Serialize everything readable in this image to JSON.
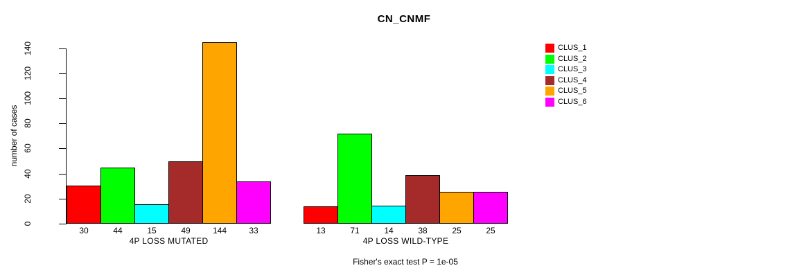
{
  "title": "CN_CNMF",
  "chart_data": {
    "type": "bar",
    "title": "CN_CNMF",
    "ylabel": "number of cases",
    "xlabel": "",
    "ylim": [
      0,
      140
    ],
    "yticks": [
      0,
      20,
      40,
      60,
      80,
      100,
      120,
      140
    ],
    "grid": false,
    "legend_position": "right",
    "series": [
      {
        "name": "CLUS_1",
        "color": "#FF0000"
      },
      {
        "name": "CLUS_2",
        "color": "#00FF00"
      },
      {
        "name": "CLUS_3",
        "color": "#00FFFF"
      },
      {
        "name": "CLUS_4",
        "color": "#A52A2A"
      },
      {
        "name": "CLUS_5",
        "color": "#FFA500"
      },
      {
        "name": "CLUS_6",
        "color": "#FF00FF"
      }
    ],
    "groups": [
      {
        "label": "4P LOSS MUTATED",
        "values": [
          30,
          44,
          15,
          49,
          144,
          33
        ]
      },
      {
        "label": "4P LOSS WILD-TYPE",
        "values": [
          13,
          71,
          14,
          38,
          25,
          25
        ]
      }
    ],
    "footnote": "Fisher's exact test P = 1e-05"
  }
}
